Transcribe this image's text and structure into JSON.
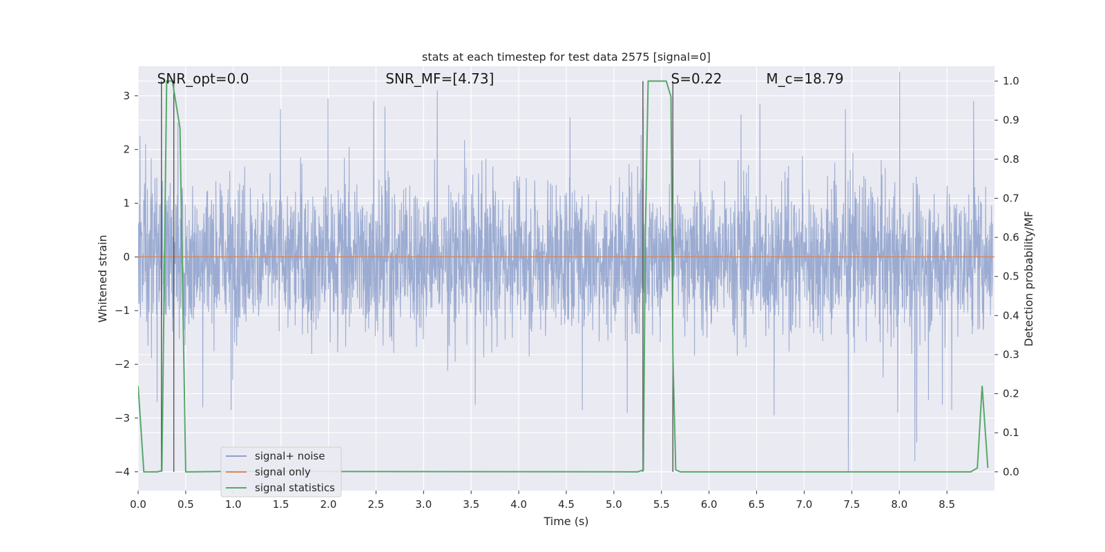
{
  "chart_data": {
    "type": "line",
    "title": "stats at each timestep for test data 2575 [signal=0]",
    "xlabel": "Time (s)",
    "ylabel": "Whitened strain",
    "y2label": "Detection probability/MF",
    "xlim": [
      0.0,
      9.0
    ],
    "ylim": [
      -4.35,
      3.55
    ],
    "y2lim": [
      -0.048,
      1.038
    ],
    "xticks": [
      "0.0",
      "0.5",
      "1.0",
      "1.5",
      "2.0",
      "2.5",
      "3.0",
      "3.5",
      "4.0",
      "4.5",
      "5.0",
      "5.5",
      "6.0",
      "6.5",
      "7.0",
      "7.5",
      "8.0",
      "8.5"
    ],
    "xtick_values": [
      0.0,
      0.5,
      1.0,
      1.5,
      2.0,
      2.5,
      3.0,
      3.5,
      4.0,
      4.5,
      5.0,
      5.5,
      6.0,
      6.5,
      7.0,
      7.5,
      8.0,
      8.5
    ],
    "yticks": [
      "−4",
      "−3",
      "−2",
      "−1",
      "0",
      "1",
      "2",
      "3"
    ],
    "ytick_values": [
      -4,
      -3,
      -2,
      -1,
      0,
      1,
      2,
      3
    ],
    "y2ticks": [
      "0.0",
      "0.1",
      "0.2",
      "0.3",
      "0.4",
      "0.5",
      "0.6",
      "0.7",
      "0.8",
      "0.9",
      "1.0"
    ],
    "y2tick_values": [
      0.0,
      0.1,
      0.2,
      0.3,
      0.4,
      0.5,
      0.6,
      0.7,
      0.8,
      0.9,
      1.0
    ],
    "grid": true,
    "legend_position": "lower-left",
    "series": [
      {
        "name": "signal+ noise",
        "color": "#8da0cb",
        "axis": "left",
        "noise_amplitude": 2.2,
        "noise_samples": 3200,
        "spikes": [
          {
            "x": 0.02,
            "y": 2.25
          },
          {
            "x": 0.08,
            "y": 2.1
          },
          {
            "x": 0.2,
            "y": -2.7
          },
          {
            "x": 0.42,
            "y": 2.5
          },
          {
            "x": 0.68,
            "y": -2.8
          },
          {
            "x": 0.98,
            "y": -2.85
          },
          {
            "x": 1.5,
            "y": 2.75
          },
          {
            "x": 2.0,
            "y": 2.95
          },
          {
            "x": 2.48,
            "y": 2.9
          },
          {
            "x": 2.6,
            "y": 2.8
          },
          {
            "x": 3.15,
            "y": 3.1
          },
          {
            "x": 3.55,
            "y": -2.75
          },
          {
            "x": 4.55,
            "y": 2.6
          },
          {
            "x": 4.68,
            "y": -2.85
          },
          {
            "x": 5.15,
            "y": -2.9
          },
          {
            "x": 5.32,
            "y": 2.75
          },
          {
            "x": 6.35,
            "y": 2.65
          },
          {
            "x": 6.55,
            "y": 2.85
          },
          {
            "x": 6.7,
            "y": -2.95
          },
          {
            "x": 7.45,
            "y": 2.75
          },
          {
            "x": 7.48,
            "y": -4.0
          },
          {
            "x": 8.0,
            "y": -2.9
          },
          {
            "x": 8.02,
            "y": 3.45
          },
          {
            "x": 8.18,
            "y": -3.8
          },
          {
            "x": 8.2,
            "y": -3.45
          },
          {
            "x": 8.47,
            "y": -2.75
          },
          {
            "x": 8.57,
            "y": -2.85
          },
          {
            "x": 8.8,
            "y": 2.9
          }
        ]
      },
      {
        "name": "signal only",
        "color": "#dd8452",
        "axis": "left",
        "x": [
          0.0,
          9.0
        ],
        "y": [
          0.0,
          0.0
        ]
      },
      {
        "name": "signal statistics",
        "color": "#55a868",
        "axis": "right",
        "x": [
          0.0,
          0.06,
          0.2,
          0.25,
          0.3,
          0.36,
          0.44,
          0.5,
          0.55,
          0.9,
          5.25,
          5.31,
          5.33,
          5.36,
          5.55,
          5.6,
          5.62,
          5.65,
          5.7,
          6.0,
          8.75,
          8.82,
          8.87,
          8.93
        ],
        "y": [
          0.22,
          0.0,
          0.0,
          0.003,
          1.0,
          1.0,
          0.88,
          0.0,
          0.0,
          0.001,
          0.0,
          0.005,
          0.6,
          1.0,
          1.0,
          0.96,
          0.3,
          0.005,
          0.0,
          0.0,
          0.0,
          0.01,
          0.22,
          0.01
        ]
      }
    ],
    "vlines": [
      {
        "x": 0.245,
        "color": "#555555"
      },
      {
        "x": 0.375,
        "color": "#555555"
      },
      {
        "x": 5.305,
        "color": "#555555"
      },
      {
        "x": 5.62,
        "color": "#555555"
      }
    ],
    "annotations": [
      {
        "text": "SNR_opt=0.0",
        "x": 0.2
      },
      {
        "text": "SNR_MF=[4.73]",
        "x": 2.6
      },
      {
        "text": "S=0.22",
        "x": 5.6
      },
      {
        "text": "M_c=18.79",
        "x": 6.6
      }
    ]
  }
}
